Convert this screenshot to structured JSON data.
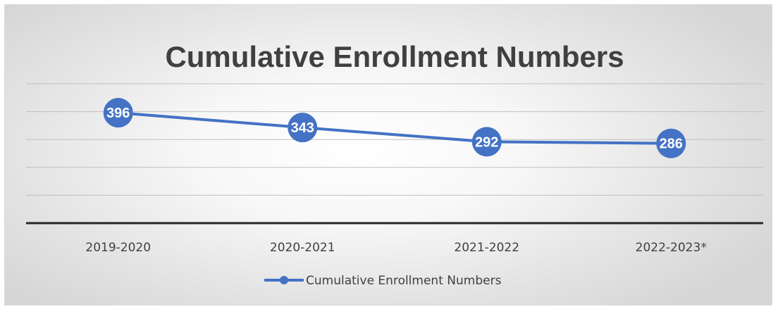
{
  "chart_data": {
    "type": "line",
    "title": "Cumulative Enrollment Numbers",
    "categories": [
      "2019-2020",
      "2020-2021",
      "2021-2022",
      "2022-2023*"
    ],
    "series": [
      {
        "name": "Cumulative Enrollment Numbers",
        "values": [
          396,
          343,
          292,
          286
        ],
        "color": "#4472c4"
      }
    ],
    "ylim": [
      0,
      500
    ],
    "grid": true,
    "show_y_tick_labels": false,
    "data_labels": true,
    "legend_position": "bottom"
  }
}
